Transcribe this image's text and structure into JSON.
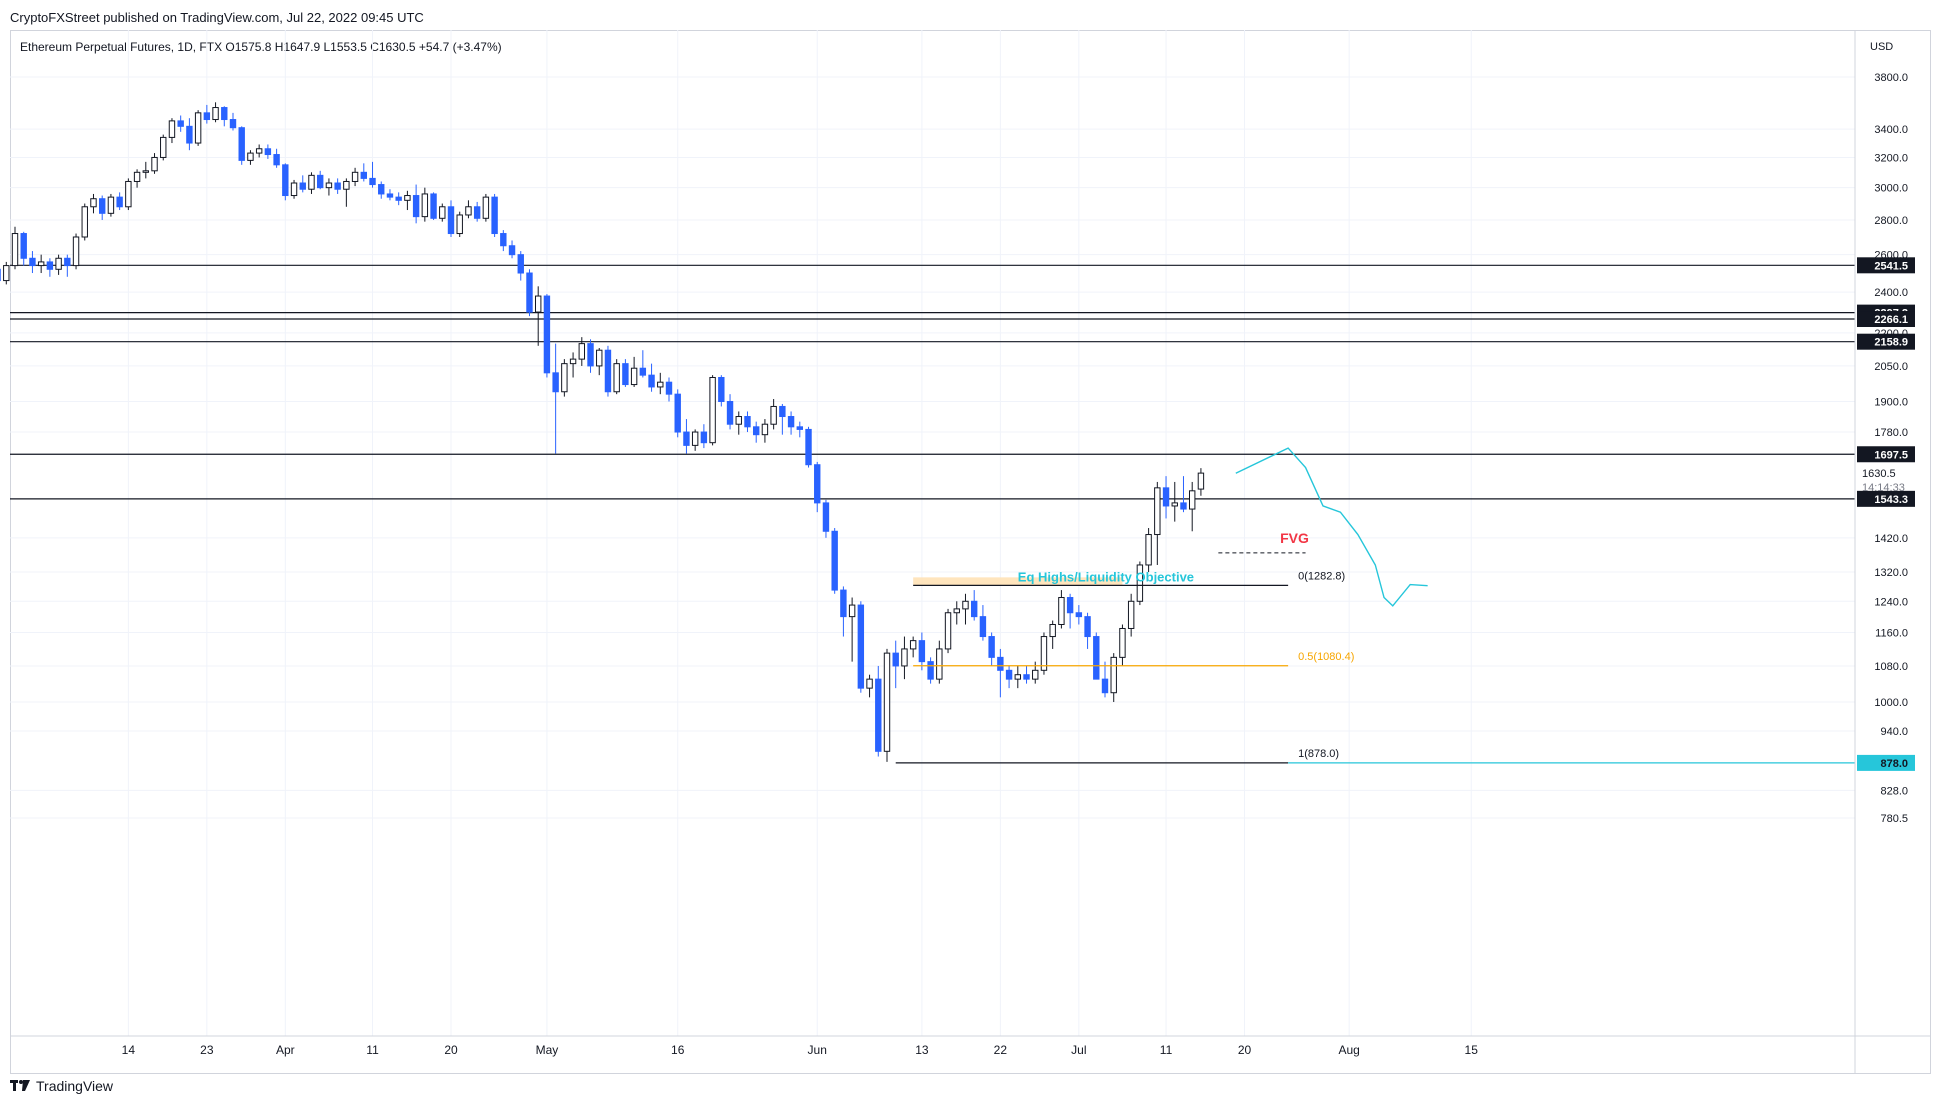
{
  "header": {
    "publisher_line": "CryptoFXStreet published on TradingView.com, Jul 22, 2022 09:45 UTC"
  },
  "symbol": {
    "line": "Ethereum Perpetual Futures, 1D, FTX  O1575.8  H1647.9  L1553.5  C1630.5  +54.7 (+3.47%)"
  },
  "footer": {
    "brand": "TradingView"
  },
  "colors": {
    "up": "#ffffff",
    "down": "#2962ff",
    "wick": "#131722",
    "projection": "#26c6da",
    "fvg": "#f23645",
    "half": "#f7a600",
    "eq_zone": "#ffe0b2"
  },
  "chart_data": {
    "type": "candlestick",
    "currency": "USD",
    "scale": "log",
    "y_ticks": [
      3800,
      3400,
      3200,
      3000,
      2800,
      2600,
      2400,
      2200,
      2050,
      1900,
      1780,
      1420,
      1320,
      1240,
      1160,
      1080,
      1000,
      940,
      828,
      780.5
    ],
    "y_tick_labels": [
      "3800.0",
      "3400.0",
      "3200.0",
      "3000.0",
      "2800.0",
      "2600.0",
      "2400.0",
      "2200.0",
      "2050.0",
      "1900.0",
      "1780.0",
      "1420.0",
      "1320.0",
      "1240.0",
      "1160.0",
      "1080.0",
      "1000.0",
      "940.0",
      "828.0",
      "780.5"
    ],
    "x_labels": [
      "14",
      "23",
      "Apr",
      "11",
      "20",
      "May",
      "16",
      "Jun",
      "13",
      "22",
      "Jul",
      "11",
      "20",
      "Aug",
      "15"
    ],
    "x_label_days": [
      13,
      22,
      31,
      41,
      50,
      61,
      76,
      92,
      104,
      113,
      122,
      132,
      141,
      153,
      167
    ],
    "horizontal_levels": [
      {
        "value": 2541.5,
        "label": "2541.5"
      },
      {
        "value": 2297.2,
        "label": "2297.2"
      },
      {
        "value": 2266.1,
        "label": "2266.1"
      },
      {
        "value": 2158.9,
        "label": "2158.9"
      },
      {
        "value": 1697.5,
        "label": "1697.5"
      },
      {
        "value": 1543.3,
        "label": "1543.3"
      }
    ],
    "last_price": {
      "value": 1630.5,
      "label": "1630.5",
      "countdown": "14:14:33"
    },
    "fib_levels": [
      {
        "value": 1282.8,
        "label": "0(1282.8)"
      },
      {
        "value": 1080.4,
        "label": "0.5(1080.4)"
      },
      {
        "value": 878.0,
        "label": "1(878.0)",
        "axis_label": "878.0"
      }
    ],
    "annotations": {
      "eq_highs": "Eq Highs/Liquidity Objective",
      "fvg": "FVG"
    },
    "fvg_level": 1375,
    "eq_zone": {
      "low": 1282.8,
      "high": 1305
    },
    "projection_path": [
      {
        "day": 140,
        "price": 1630
      },
      {
        "day": 146,
        "price": 1720
      },
      {
        "day": 148,
        "price": 1650
      },
      {
        "day": 150,
        "price": 1520
      },
      {
        "day": 152,
        "price": 1500
      },
      {
        "day": 154,
        "price": 1430
      },
      {
        "day": 156,
        "price": 1340
      },
      {
        "day": 157,
        "price": 1250
      },
      {
        "day": 158,
        "price": 1228
      },
      {
        "day": 160,
        "price": 1285
      },
      {
        "day": 162,
        "price": 1282
      }
    ],
    "candles": [
      [
        2560,
        2580,
        2500,
        2520
      ],
      [
        2520,
        2540,
        2430,
        2460
      ],
      [
        2460,
        2560,
        2440,
        2540
      ],
      [
        2540,
        2760,
        2520,
        2720
      ],
      [
        2720,
        2730,
        2540,
        2580
      ],
      [
        2580,
        2620,
        2500,
        2540
      ],
      [
        2540,
        2600,
        2500,
        2560
      ],
      [
        2560,
        2580,
        2480,
        2520
      ],
      [
        2520,
        2600,
        2490,
        2580
      ],
      [
        2580,
        2600,
        2480,
        2540
      ],
      [
        2540,
        2720,
        2520,
        2700
      ],
      [
        2700,
        2900,
        2680,
        2880
      ],
      [
        2880,
        2960,
        2840,
        2930
      ],
      [
        2930,
        2950,
        2800,
        2840
      ],
      [
        2840,
        2960,
        2820,
        2940
      ],
      [
        2940,
        2970,
        2860,
        2880
      ],
      [
        2880,
        3060,
        2860,
        3040
      ],
      [
        3040,
        3120,
        3000,
        3100
      ],
      [
        3100,
        3170,
        3060,
        3110
      ],
      [
        3110,
        3230,
        3090,
        3200
      ],
      [
        3200,
        3360,
        3180,
        3340
      ],
      [
        3340,
        3480,
        3300,
        3460
      ],
      [
        3460,
        3500,
        3380,
        3420
      ],
      [
        3420,
        3480,
        3250,
        3300
      ],
      [
        3300,
        3540,
        3280,
        3520
      ],
      [
        3520,
        3580,
        3440,
        3470
      ],
      [
        3470,
        3600,
        3450,
        3560
      ],
      [
        3560,
        3570,
        3420,
        3470
      ],
      [
        3470,
        3520,
        3390,
        3410
      ],
      [
        3410,
        3420,
        3150,
        3180
      ],
      [
        3180,
        3250,
        3150,
        3230
      ],
      [
        3230,
        3290,
        3200,
        3260
      ],
      [
        3260,
        3290,
        3190,
        3220
      ],
      [
        3220,
        3260,
        3130,
        3150
      ],
      [
        3150,
        3160,
        2920,
        2950
      ],
      [
        2950,
        3050,
        2930,
        3030
      ],
      [
        3030,
        3080,
        2970,
        2990
      ],
      [
        2990,
        3100,
        2960,
        3080
      ],
      [
        3080,
        3110,
        2990,
        3000
      ],
      [
        3000,
        3060,
        2950,
        3030
      ],
      [
        3030,
        3060,
        2960,
        2990
      ],
      [
        2990,
        3060,
        2880,
        3040
      ],
      [
        3040,
        3130,
        3010,
        3100
      ],
      [
        3100,
        3160,
        3040,
        3060
      ],
      [
        3060,
        3170,
        3000,
        3020
      ],
      [
        3020,
        3040,
        2930,
        2960
      ],
      [
        2960,
        2990,
        2920,
        2940
      ],
      [
        2940,
        2970,
        2890,
        2920
      ],
      [
        2920,
        2980,
        2860,
        2950
      ],
      [
        2950,
        3020,
        2780,
        2820
      ],
      [
        2820,
        3000,
        2790,
        2960
      ],
      [
        2960,
        2970,
        2800,
        2810
      ],
      [
        2810,
        2900,
        2790,
        2880
      ],
      [
        2880,
        2920,
        2700,
        2720
      ],
      [
        2720,
        2850,
        2700,
        2830
      ],
      [
        2830,
        2920,
        2810,
        2880
      ],
      [
        2880,
        2910,
        2790,
        2810
      ],
      [
        2810,
        2960,
        2790,
        2940
      ],
      [
        2940,
        2960,
        2700,
        2720
      ],
      [
        2720,
        2740,
        2620,
        2650
      ],
      [
        2650,
        2680,
        2580,
        2600
      ],
      [
        2600,
        2620,
        2460,
        2500
      ],
      [
        2500,
        2520,
        2280,
        2300
      ],
      [
        2300,
        2430,
        2140,
        2380
      ],
      [
        2380,
        2390,
        2000,
        2020
      ],
      [
        2020,
        2150,
        1700,
        1940
      ],
      [
        1940,
        2080,
        1920,
        2060
      ],
      [
        2060,
        2110,
        2000,
        2080
      ],
      [
        2080,
        2180,
        2050,
        2150
      ],
      [
        2150,
        2170,
        2020,
        2050
      ],
      [
        2050,
        2130,
        2010,
        2120
      ],
      [
        2120,
        2140,
        1920,
        1940
      ],
      [
        1940,
        2080,
        1930,
        2060
      ],
      [
        2060,
        2080,
        1960,
        1970
      ],
      [
        1970,
        2090,
        1960,
        2040
      ],
      [
        2040,
        2120,
        2000,
        2010
      ],
      [
        2010,
        2060,
        1940,
        1960
      ],
      [
        1960,
        2020,
        1930,
        1980
      ],
      [
        1980,
        2000,
        1900,
        1930
      ],
      [
        1930,
        1950,
        1760,
        1780
      ],
      [
        1780,
        1830,
        1700,
        1730
      ],
      [
        1730,
        1790,
        1710,
        1780
      ],
      [
        1780,
        1810,
        1720,
        1740
      ],
      [
        1740,
        2010,
        1730,
        2000
      ],
      [
        2000,
        2010,
        1880,
        1900
      ],
      [
        1900,
        1930,
        1790,
        1810
      ],
      [
        1810,
        1860,
        1770,
        1840
      ],
      [
        1840,
        1860,
        1780,
        1800
      ],
      [
        1800,
        1820,
        1740,
        1770
      ],
      [
        1770,
        1830,
        1740,
        1810
      ],
      [
        1810,
        1910,
        1790,
        1880
      ],
      [
        1880,
        1890,
        1770,
        1840
      ],
      [
        1840,
        1860,
        1770,
        1800
      ],
      [
        1800,
        1820,
        1760,
        1790
      ],
      [
        1790,
        1800,
        1650,
        1660
      ],
      [
        1660,
        1670,
        1500,
        1530
      ],
      [
        1530,
        1540,
        1420,
        1440
      ],
      [
        1440,
        1450,
        1260,
        1270
      ],
      [
        1270,
        1280,
        1150,
        1200
      ],
      [
        1200,
        1250,
        1090,
        1230
      ],
      [
        1230,
        1240,
        1020,
        1030
      ],
      [
        1030,
        1060,
        1010,
        1050
      ],
      [
        1050,
        1080,
        890,
        900
      ],
      [
        900,
        1120,
        880,
        1110
      ],
      [
        1110,
        1140,
        1030,
        1080
      ],
      [
        1080,
        1150,
        1050,
        1120
      ],
      [
        1120,
        1150,
        1100,
        1140
      ],
      [
        1140,
        1160,
        1070,
        1090
      ],
      [
        1090,
        1100,
        1040,
        1050
      ],
      [
        1050,
        1140,
        1040,
        1120
      ],
      [
        1120,
        1220,
        1110,
        1210
      ],
      [
        1210,
        1240,
        1180,
        1220
      ],
      [
        1220,
        1260,
        1180,
        1240
      ],
      [
        1240,
        1270,
        1190,
        1200
      ],
      [
        1200,
        1230,
        1140,
        1150
      ],
      [
        1150,
        1160,
        1080,
        1100
      ],
      [
        1100,
        1120,
        1010,
        1070
      ],
      [
        1070,
        1080,
        1030,
        1050
      ],
      [
        1050,
        1080,
        1030,
        1060
      ],
      [
        1060,
        1080,
        1040,
        1050
      ],
      [
        1050,
        1090,
        1040,
        1070
      ],
      [
        1070,
        1160,
        1060,
        1150
      ],
      [
        1150,
        1190,
        1120,
        1180
      ],
      [
        1180,
        1270,
        1170,
        1250
      ],
      [
        1250,
        1260,
        1170,
        1210
      ],
      [
        1210,
        1230,
        1180,
        1200
      ],
      [
        1200,
        1210,
        1120,
        1150
      ],
      [
        1150,
        1160,
        1050,
        1050
      ],
      [
        1050,
        1090,
        1010,
        1020
      ],
      [
        1020,
        1110,
        1000,
        1100
      ],
      [
        1100,
        1180,
        1080,
        1170
      ],
      [
        1170,
        1260,
        1150,
        1240
      ],
      [
        1240,
        1350,
        1230,
        1340
      ],
      [
        1340,
        1450,
        1320,
        1430
      ],
      [
        1430,
        1600,
        1340,
        1580
      ],
      [
        1580,
        1620,
        1480,
        1520
      ],
      [
        1520,
        1600,
        1470,
        1530
      ],
      [
        1530,
        1620,
        1500,
        1510
      ],
      [
        1510,
        1600,
        1440,
        1570
      ],
      [
        1575.8,
        1647.9,
        1553.5,
        1630.5
      ]
    ],
    "first_candle_day": -3
  }
}
